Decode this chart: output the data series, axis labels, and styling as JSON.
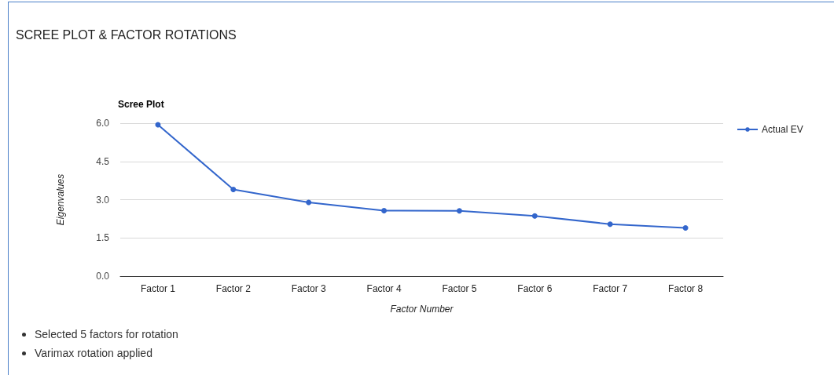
{
  "chart_data": {
    "type": "line",
    "title": "SCREE PLOT & FACTOR ROTATIONS",
    "subtitle": "Scree Plot",
    "xlabel": "Factor Number",
    "ylabel": "Eigenvalues",
    "categories": [
      "Factor 1",
      "Factor 2",
      "Factor 3",
      "Factor 4",
      "Factor 5",
      "Factor 6",
      "Factor 7",
      "Factor 8"
    ],
    "series": [
      {
        "name": "Actual EV",
        "color": "#3366cc",
        "values": [
          5.94,
          3.4,
          2.89,
          2.57,
          2.56,
          2.36,
          2.04,
          1.89
        ]
      }
    ],
    "ylim": [
      0,
      6
    ],
    "yticks": [
      {
        "value": 0,
        "label": "0.0"
      },
      {
        "value": 1.5,
        "label": "1.5"
      },
      {
        "value": 3,
        "label": "3.0"
      },
      {
        "value": 4.5,
        "label": "4.5"
      },
      {
        "value": 6,
        "label": "6.0"
      }
    ],
    "grid": "y",
    "legend": "right",
    "marker": "circle",
    "line_style": "solid",
    "annotations": [
      "Selected 5 factors for rotation",
      "Varimax rotation applied"
    ]
  }
}
